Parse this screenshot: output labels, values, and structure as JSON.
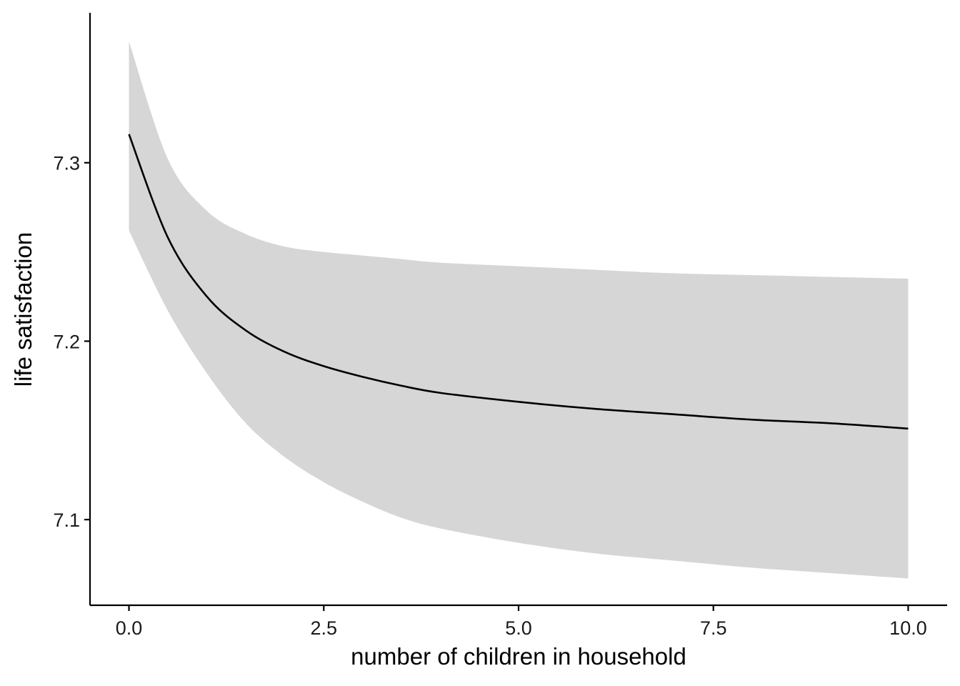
{
  "chart_data": {
    "type": "line",
    "title": "",
    "xlabel": "number of children in household",
    "ylabel": "life satisfaction",
    "xlim": [
      -0.5,
      10.5
    ],
    "ylim": [
      7.052,
      7.384
    ],
    "xticks": [
      0,
      2.5,
      5,
      7.5,
      10
    ],
    "xtick_labels": [
      "0.0",
      "2.5",
      "5.0",
      "7.5",
      "10.0"
    ],
    "yticks": [
      7.1,
      7.2,
      7.3
    ],
    "ytick_labels": [
      "7.1",
      "7.2",
      "7.3"
    ],
    "grid": false,
    "series": [
      {
        "x": [
          0,
          0.5,
          1,
          1.5,
          2,
          2.5,
          3,
          3.5,
          4,
          5,
          6,
          7,
          8,
          9,
          10
        ],
        "y": [
          7.316,
          7.258,
          7.225,
          7.206,
          7.194,
          7.186,
          7.18,
          7.175,
          7.171,
          7.166,
          7.162,
          7.159,
          7.156,
          7.154,
          7.151
        ],
        "lower": [
          7.262,
          7.217,
          7.182,
          7.154,
          7.135,
          7.121,
          7.11,
          7.101,
          7.095,
          7.087,
          7.081,
          7.077,
          7.073,
          7.07,
          7.067
        ],
        "upper": [
          7.368,
          7.302,
          7.273,
          7.26,
          7.253,
          7.25,
          7.248,
          7.246,
          7.244,
          7.242,
          7.24,
          7.238,
          7.237,
          7.236,
          7.235
        ]
      }
    ],
    "colors": {
      "line": "#000000",
      "band": "#d6d6d6",
      "axis": "#000000"
    }
  }
}
